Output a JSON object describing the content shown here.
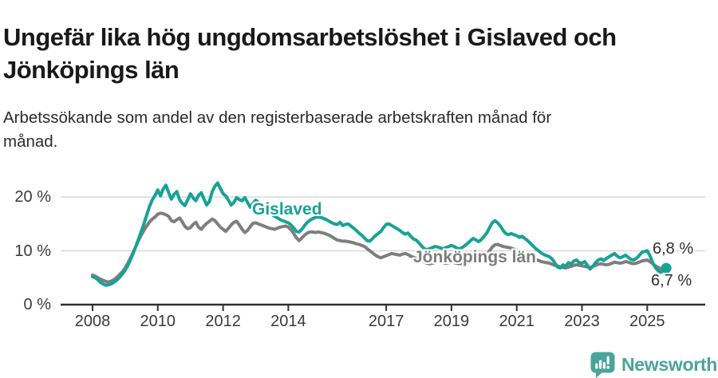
{
  "header": {
    "title": "Ungefär lika hög ungdomsarbetslöshet i Gislaved och Jönköpings län",
    "subtitle": "Arbetssökande som andel av den registerbaserade arbetskraften månad för månad."
  },
  "chart_data": {
    "type": "line",
    "title": "Ungefär lika hög ungdomsarbetslöshet i Gislaved och Jönköpings län",
    "subtitle": "Arbetssökande som andel av den registerbaserade arbetskraften månad för månad.",
    "unit": "percent",
    "frequency": "monthly",
    "x_start": "2008-01",
    "x_end": "2025-08",
    "ylim": [
      0,
      23
    ],
    "grid": "horizontal",
    "legend_position": "inline-labels",
    "yticks": [
      {
        "value": 20,
        "label": "20 %"
      },
      {
        "value": 10,
        "label": "10 %"
      },
      {
        "value": 0,
        "label": "0 %"
      }
    ],
    "xticks": [
      {
        "value": 2008,
        "label": "2008"
      },
      {
        "value": 2010,
        "label": "2010"
      },
      {
        "value": 2012,
        "label": "2012"
      },
      {
        "value": 2014,
        "label": "2014"
      },
      {
        "value": 2017,
        "label": "2017"
      },
      {
        "value": 2019,
        "label": "2019"
      },
      {
        "value": 2021,
        "label": "2021"
      },
      {
        "value": 2023,
        "label": "2023"
      },
      {
        "value": 2025,
        "label": "2025"
      }
    ],
    "series": [
      {
        "name": "Jönköpings län",
        "color": "#7e7e7e",
        "end_value_label": "6,7 %",
        "end_dot": false,
        "values": [
          5.5,
          5.3,
          5.0,
          4.7,
          4.5,
          4.3,
          4.2,
          4.4,
          4.7,
          5.1,
          5.6,
          6.1,
          6.8,
          7.7,
          8.7,
          9.8,
          10.9,
          12.0,
          13.0,
          13.9,
          14.7,
          15.4,
          15.9,
          16.3,
          16.8,
          17.0,
          16.9,
          16.7,
          16.4,
          15.6,
          15.4,
          15.8,
          16.1,
          15.4,
          14.5,
          14.1,
          14.3,
          14.9,
          15.3,
          14.4,
          14.0,
          14.6,
          15.1,
          15.5,
          15.9,
          15.6,
          15.0,
          14.4,
          14.0,
          13.6,
          14.2,
          14.8,
          15.3,
          15.5,
          14.8,
          14.0,
          13.4,
          13.8,
          14.5,
          15.1,
          15.2,
          15.0,
          14.8,
          14.6,
          14.4,
          14.2,
          14.1,
          14.0,
          14.2,
          14.4,
          14.5,
          14.6,
          14.4,
          13.9,
          13.2,
          12.4,
          11.9,
          12.4,
          12.9,
          13.3,
          13.5,
          13.5,
          13.4,
          13.5,
          13.4,
          13.3,
          13.1,
          12.9,
          12.6,
          12.3,
          12.0,
          11.9,
          11.8,
          11.8,
          11.7,
          11.6,
          11.5,
          11.3,
          11.2,
          11.0,
          10.8,
          10.4,
          10.0,
          9.6,
          9.2,
          8.9,
          8.7,
          8.9,
          9.1,
          9.3,
          9.5,
          9.4,
          9.3,
          9.2,
          9.4,
          9.5,
          9.3,
          9.0,
          8.8,
          8.6,
          8.4,
          8.1,
          7.9,
          7.7,
          7.6,
          7.7,
          7.9,
          8.0,
          7.9,
          7.8,
          7.7,
          7.8,
          7.9,
          7.8,
          7.7,
          7.6,
          7.7,
          7.9,
          8.1,
          8.3,
          8.4,
          8.3,
          8.3,
          8.5,
          8.8,
          9.3,
          10.0,
          10.7,
          11.1,
          11.2,
          11.0,
          10.8,
          10.7,
          10.6,
          10.5,
          10.3,
          10.1,
          9.9,
          9.8,
          9.6,
          9.3,
          9.0,
          8.7,
          8.4,
          8.2,
          8.0,
          7.9,
          7.8,
          7.7,
          7.5,
          7.3,
          7.2,
          7.0,
          6.9,
          6.8,
          7.0,
          7.1,
          7.3,
          7.4,
          7.3,
          7.2,
          7.1,
          7.0,
          6.9,
          7.1,
          7.3,
          7.5,
          7.6,
          7.5,
          7.4,
          7.5,
          7.7,
          7.9,
          7.8,
          7.7,
          7.8,
          8.0,
          7.9,
          7.7,
          7.6,
          7.7,
          7.9,
          8.1,
          8.2,
          8.3,
          8.0,
          7.6,
          7.2,
          6.9,
          6.7,
          6.6,
          6.7
        ]
      },
      {
        "name": "Gislaved",
        "color": "#17a297",
        "end_value_label": "6,8 %",
        "end_dot": true,
        "values": [
          5.2,
          5.0,
          4.6,
          4.1,
          3.8,
          3.6,
          3.7,
          3.9,
          4.2,
          4.6,
          5.1,
          5.7,
          6.4,
          7.3,
          8.4,
          9.6,
          10.9,
          12.3,
          13.7,
          15.2,
          16.8,
          18.3,
          19.5,
          20.3,
          21.3,
          20.2,
          21.5,
          22.2,
          20.8,
          19.6,
          20.5,
          21.0,
          19.5,
          18.8,
          18.4,
          19.5,
          20.6,
          19.8,
          19.3,
          20.3,
          20.8,
          19.6,
          18.5,
          19.2,
          21.0,
          22.0,
          22.6,
          21.6,
          20.6,
          20.2,
          19.4,
          18.5,
          19.0,
          19.9,
          19.5,
          19.3,
          19.9,
          19.0,
          18.1,
          18.8,
          19.4,
          19.0,
          18.5,
          18.0,
          17.6,
          17.2,
          16.8,
          16.4,
          16.1,
          15.8,
          15.6,
          15.4,
          15.2,
          14.8,
          14.2,
          13.6,
          13.5,
          14.0,
          14.7,
          15.3,
          15.7,
          16.0,
          16.2,
          16.3,
          16.2,
          16.0,
          15.8,
          15.5,
          15.2,
          15.0,
          14.9,
          15.3,
          14.7,
          14.9,
          15.0,
          14.6,
          14.2,
          13.8,
          13.3,
          12.9,
          12.4,
          11.9,
          11.8,
          12.3,
          12.8,
          13.2,
          13.6,
          14.3,
          14.9,
          15.0,
          14.7,
          14.4,
          14.1,
          13.8,
          13.4,
          13.1,
          13.3,
          12.7,
          12.2,
          12.0,
          11.5,
          10.9,
          10.4,
          10.2,
          10.4,
          10.6,
          10.8,
          10.7,
          10.5,
          10.4,
          10.6,
          10.8,
          11.0,
          10.8,
          10.5,
          10.4,
          10.6,
          11.0,
          11.4,
          11.9,
          12.3,
          12.0,
          11.7,
          12.1,
          12.7,
          13.3,
          14.3,
          15.2,
          15.6,
          15.2,
          14.6,
          13.8,
          13.2,
          13.0,
          13.2,
          13.0,
          12.8,
          12.5,
          12.7,
          12.3,
          11.9,
          11.4,
          10.9,
          10.4,
          10.0,
          9.6,
          9.3,
          9.1,
          8.9,
          8.5,
          7.8,
          7.0,
          6.8,
          7.4,
          7.1,
          7.8,
          7.5,
          8.1,
          8.3,
          7.8,
          7.7,
          8.0,
          7.3,
          6.6,
          7.1,
          7.8,
          8.3,
          8.5,
          8.2,
          8.6,
          8.9,
          9.2,
          9.5,
          9.0,
          8.7,
          8.9,
          9.2,
          8.8,
          8.4,
          8.3,
          8.6,
          9.1,
          9.7,
          9.9,
          10.0,
          9.1,
          7.8,
          6.9,
          6.3,
          6.0,
          6.4,
          6.8
        ]
      }
    ]
  },
  "colors": {
    "accent_teal": "#17a297",
    "series_gray": "#7e7e7e",
    "gridline": "#d8d8d8",
    "axis": "#2f2f2f",
    "logo_teal": "#4ba39b"
  },
  "branding": {
    "logo_text": "Newsworthy",
    "icon": "bar-chart-speech-bubble-icon"
  }
}
